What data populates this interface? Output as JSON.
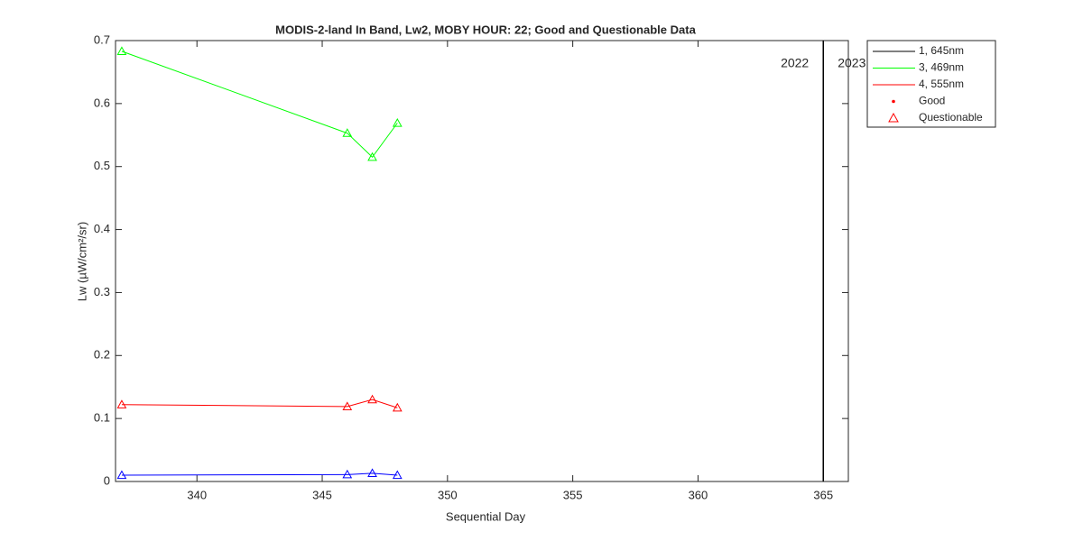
{
  "chart_data": {
    "type": "line",
    "title": "MODIS-2-land In Band,  Lw2, MOBY HOUR: 22;  Good and Questionable Data",
    "xlabel": "Sequential Day",
    "ylabel": "Lw (µW/cm²/sr)",
    "x": [
      337,
      346,
      347,
      348
    ],
    "series": [
      {
        "name": "1, 645nm",
        "color": "#0000ff",
        "legend_color": "#000000",
        "values": [
          0.01,
          0.011,
          0.013,
          0.01
        ]
      },
      {
        "name": "3, 469nm",
        "color": "#00ff00",
        "legend_color": "#00ff00",
        "values": [
          0.683,
          0.553,
          0.515,
          0.569
        ]
      },
      {
        "name": "4, 555nm",
        "color": "#ff0000",
        "legend_color": "#ff0000",
        "values": [
          0.122,
          0.119,
          0.13,
          0.117
        ]
      }
    ],
    "marker_legend": [
      {
        "name": "Good",
        "symbol": "dot",
        "color": "#ff0000"
      },
      {
        "name": "Questionable",
        "symbol": "triangle",
        "color": "#ff0000"
      }
    ],
    "vline": {
      "x": 365,
      "left_label": "2022",
      "right_label": "2023"
    },
    "xlim": [
      336.75,
      366
    ],
    "xticks": [
      340,
      345,
      350,
      355,
      360,
      365
    ],
    "ylim": [
      0,
      0.7
    ],
    "yticks": [
      0,
      0.1,
      0.2,
      0.3,
      0.4,
      0.5,
      0.6,
      0.7
    ],
    "legend": "outside-top-right"
  }
}
